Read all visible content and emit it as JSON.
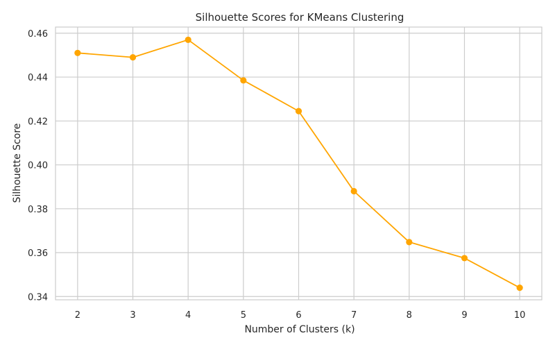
{
  "chart_data": {
    "type": "line",
    "title": "Silhouette Scores for KMeans Clustering",
    "xlabel": "Number of Clusters (k)",
    "ylabel": "Silhouette Score",
    "x": [
      2,
      3,
      4,
      5,
      6,
      7,
      8,
      9,
      10
    ],
    "x_ticks": [
      "2",
      "3",
      "4",
      "5",
      "6",
      "7",
      "8",
      "9",
      "10"
    ],
    "y_ticks": [
      0.34,
      0.36,
      0.38,
      0.4,
      0.42,
      0.44,
      0.46
    ],
    "y_tick_labels": [
      "0.34",
      "0.36",
      "0.38",
      "0.40",
      "0.42",
      "0.44",
      "0.46"
    ],
    "xlim": [
      1.6,
      10.4
    ],
    "ylim": [
      0.3385,
      0.4628
    ],
    "grid": true,
    "series": [
      {
        "values": [
          0.451,
          0.449,
          0.457,
          0.4385,
          0.4245,
          0.388,
          0.3648,
          0.3575,
          0.344
        ],
        "color": "#ffa500",
        "marker": "circle"
      }
    ]
  }
}
